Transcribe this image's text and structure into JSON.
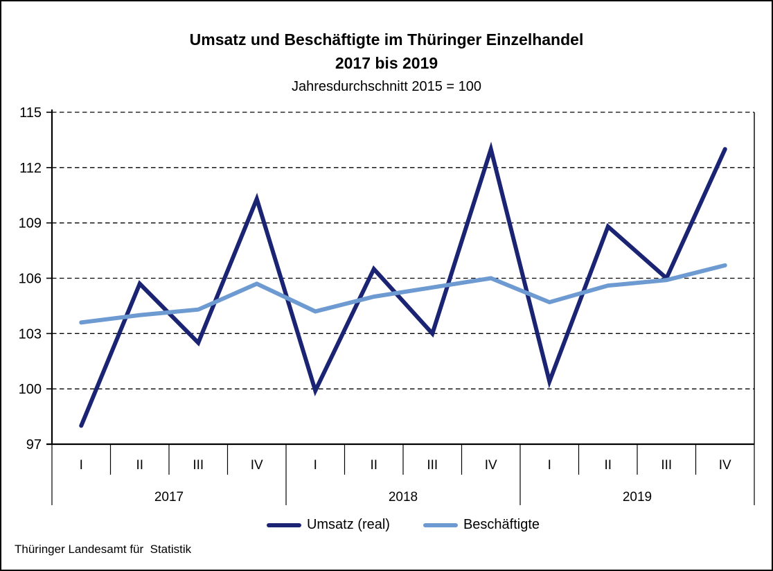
{
  "header": {
    "title_line1": "Umsatz und Beschäftigte im Thüringer Einzelhandel",
    "title_line2": "2017 bis 2019",
    "subtitle": "Jahresdurchschnitt 2015 = 100"
  },
  "chart_data": {
    "type": "line",
    "title": "Umsatz und Beschäftigte im Thüringer Einzelhandel 2017 bis 2019",
    "subtitle": "Jahresdurchschnitt 2015 = 100",
    "x_groups": [
      {
        "year": "2017",
        "quarters": [
          "I",
          "II",
          "III",
          "IV"
        ]
      },
      {
        "year": "2018",
        "quarters": [
          "I",
          "II",
          "III",
          "IV"
        ]
      },
      {
        "year": "2019",
        "quarters": [
          "I",
          "II",
          "III",
          "IV"
        ]
      }
    ],
    "categories": [
      "2017-I",
      "2017-II",
      "2017-III",
      "2017-IV",
      "2018-I",
      "2018-II",
      "2018-III",
      "2018-IV",
      "2019-I",
      "2019-II",
      "2019-III",
      "2019-IV"
    ],
    "series": [
      {
        "name": "Umsatz (real)",
        "color": "#1a2473",
        "stroke_width": 6,
        "values": [
          98.0,
          105.7,
          102.5,
          110.3,
          99.9,
          106.5,
          103.0,
          113.0,
          100.4,
          108.8,
          106.0,
          113.0
        ]
      },
      {
        "name": "Beschäftigte",
        "color": "#6e9ad2",
        "stroke_width": 6,
        "values": [
          103.6,
          104.0,
          104.3,
          105.7,
          104.2,
          105.0,
          105.5,
          106.0,
          104.7,
          105.6,
          105.9,
          106.7
        ]
      }
    ],
    "ylim": [
      97,
      115
    ],
    "yticks": [
      97,
      100,
      103,
      106,
      109,
      112,
      115
    ],
    "grid": "horizontal-dashed",
    "legend_position": "bottom"
  },
  "footer": {
    "source": "Thüringer Landesamt für  Statistik"
  }
}
